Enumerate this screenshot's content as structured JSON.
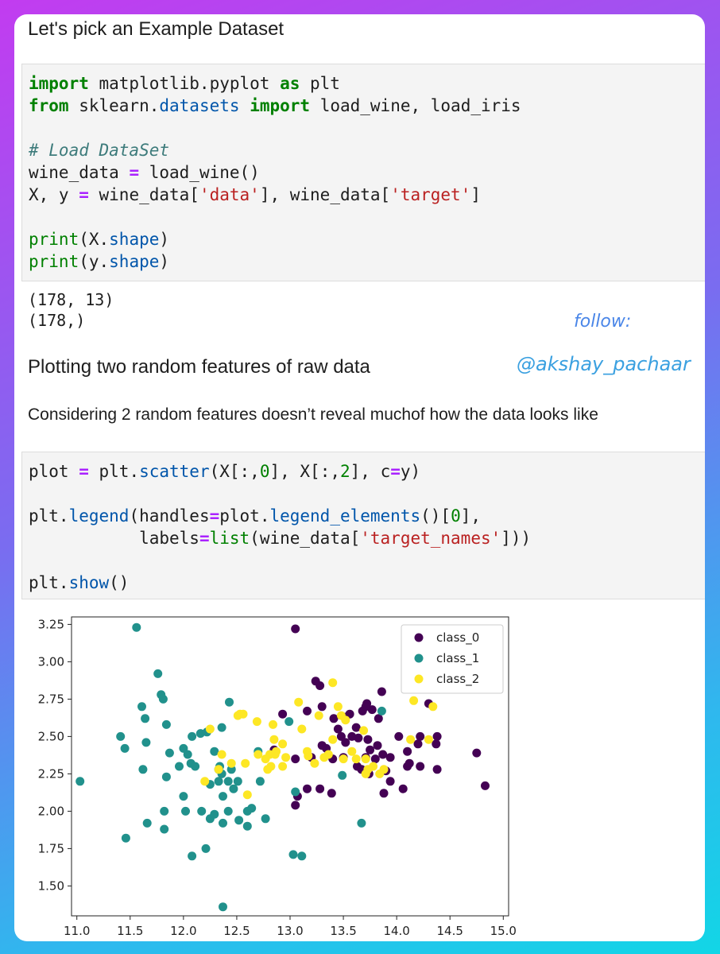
{
  "header": {
    "title": "Let's pick an Example Dataset"
  },
  "cell1": {
    "line1": {
      "kw_import": "import",
      "module": " matplotlib.pyplot ",
      "kw_as": "as",
      "rest": " plt"
    },
    "line2": {
      "kw_from": "from",
      "pre": " sklearn.",
      "module": "datasets",
      "space": " ",
      "kw_import": "import",
      "rest": " load_wine, load_iris"
    },
    "comment": "# Load DataSet",
    "line4": {
      "lhs": "wine_data ",
      "eq": "=",
      "rhs": " load_wine()"
    },
    "line5": {
      "lhs": "X, y ",
      "eq": "=",
      "pre": " wine_data[",
      "str1": "'data'",
      "mid": "], wine_data[",
      "str2": "'target'",
      "post": "]"
    },
    "line6": {
      "fn": "print",
      "pre": "(X.",
      "attr": "shape",
      "post": ")"
    },
    "line7": {
      "fn": "print",
      "pre": "(y.",
      "attr": "shape",
      "post": ")"
    }
  },
  "output1": {
    "line1": "(178, 13)",
    "line2": "(178,)"
  },
  "watermark": {
    "follow": "follow:",
    "handle": "@akshay_pachaar"
  },
  "section2": {
    "title": "Plotting two random features of raw data",
    "description": "Considering 2 random features doesn’t reveal muchof how the data looks like"
  },
  "cell2": {
    "line1": {
      "lhs": "plot ",
      "eq": "=",
      "pre": " plt.",
      "attr": "scatter",
      "a": "(X[:,",
      "n1": "0",
      "b": "], X[:,",
      "n2": "2",
      "c": "], c",
      "eq2": "=",
      "d": "y)"
    },
    "line2": {
      "pre": "plt.",
      "attr": "legend",
      "a": "(handles",
      "eq": "=",
      "b": "plot.",
      "attr2": "legend_elements",
      "c": "()[",
      "n": "0",
      "d": "],"
    },
    "line3": {
      "indent": "           labels",
      "eq": "=",
      "fn": "list",
      "a": "(wine_data[",
      "str": "'target_names'",
      "b": "]))"
    },
    "line4": {
      "pre": "plt.",
      "attr": "show",
      "post": "()"
    }
  },
  "chart_data": {
    "type": "scatter",
    "xlim": [
      10.95,
      15.05
    ],
    "ylim": [
      1.3,
      3.3
    ],
    "xticks": [
      11.0,
      11.5,
      12.0,
      12.5,
      13.0,
      13.5,
      14.0,
      14.5,
      15.0
    ],
    "xtick_labels": [
      "11.0",
      "11.5",
      "12.0",
      "12.5",
      "13.0",
      "13.5",
      "14.0",
      "14.5",
      "15.0"
    ],
    "yticks": [
      1.5,
      1.75,
      2.0,
      2.25,
      2.5,
      2.75,
      3.0,
      3.25
    ],
    "ytick_labels": [
      "1.50",
      "1.75",
      "2.00",
      "2.25",
      "2.50",
      "2.75",
      "3.00",
      "3.25"
    ],
    "legend_position": "top-right",
    "grid": false,
    "series": [
      {
        "name": "class_0",
        "color": "#440154",
        "points": [
          [
            13.05,
            3.22
          ],
          [
            14.83,
            2.17
          ],
          [
            14.75,
            2.39
          ],
          [
            14.38,
            2.5
          ],
          [
            14.38,
            2.28
          ],
          [
            14.37,
            2.45
          ],
          [
            14.3,
            2.72
          ],
          [
            14.22,
            2.5
          ],
          [
            14.22,
            2.3
          ],
          [
            14.2,
            2.45
          ],
          [
            14.1,
            2.4
          ],
          [
            14.1,
            2.3
          ],
          [
            14.06,
            2.15
          ],
          [
            14.02,
            2.5
          ],
          [
            13.94,
            2.36
          ],
          [
            13.87,
            2.38
          ],
          [
            13.86,
            2.8
          ],
          [
            13.88,
            2.12
          ],
          [
            13.9,
            2.27
          ],
          [
            13.83,
            2.62
          ],
          [
            13.82,
            2.44
          ],
          [
            13.77,
            2.68
          ],
          [
            13.75,
            2.41
          ],
          [
            13.73,
            2.48
          ],
          [
            13.74,
            2.25
          ],
          [
            13.72,
            2.72
          ],
          [
            13.71,
            2.36
          ],
          [
            13.68,
            2.67
          ],
          [
            13.64,
            2.49
          ],
          [
            13.63,
            2.3
          ],
          [
            13.58,
            2.5
          ],
          [
            13.56,
            2.65
          ],
          [
            13.52,
            2.46
          ],
          [
            13.5,
            2.36
          ],
          [
            13.48,
            2.5
          ],
          [
            13.41,
            2.62
          ],
          [
            13.4,
            2.35
          ],
          [
            13.39,
            2.12
          ],
          [
            13.34,
            2.42
          ],
          [
            13.3,
            2.7
          ],
          [
            13.28,
            2.84
          ],
          [
            13.24,
            2.87
          ],
          [
            13.2,
            2.36
          ],
          [
            13.16,
            2.67
          ],
          [
            13.16,
            2.15
          ],
          [
            13.07,
            2.1
          ],
          [
            13.05,
            2.04
          ],
          [
            13.05,
            2.35
          ],
          [
            13.28,
            2.15
          ],
          [
            13.3,
            2.44
          ],
          [
            14.12,
            2.32
          ],
          [
            13.94,
            2.2
          ],
          [
            13.8,
            2.35
          ],
          [
            13.67,
            2.28
          ],
          [
            13.51,
            2.63
          ],
          [
            13.45,
            2.55
          ],
          [
            12.93,
            2.65
          ],
          [
            12.85,
            2.41
          ],
          [
            13.62,
            2.56
          ],
          [
            13.71,
            2.7
          ]
        ]
      },
      {
        "name": "class_1",
        "color": "#21918c",
        "points": [
          [
            11.56,
            3.23
          ],
          [
            11.03,
            2.2
          ],
          [
            11.41,
            2.5
          ],
          [
            11.45,
            2.42
          ],
          [
            11.46,
            1.82
          ],
          [
            11.61,
            2.7
          ],
          [
            11.62,
            2.28
          ],
          [
            11.64,
            2.62
          ],
          [
            11.65,
            2.46
          ],
          [
            11.66,
            1.92
          ],
          [
            11.76,
            2.92
          ],
          [
            11.79,
            2.78
          ],
          [
            11.81,
            2.75
          ],
          [
            11.82,
            2.0
          ],
          [
            11.82,
            1.88
          ],
          [
            11.84,
            2.58
          ],
          [
            11.84,
            2.23
          ],
          [
            11.87,
            2.39
          ],
          [
            11.96,
            2.3
          ],
          [
            12.0,
            2.42
          ],
          [
            12.02,
            2.0
          ],
          [
            12.04,
            2.38
          ],
          [
            12.07,
            2.32
          ],
          [
            12.08,
            2.5
          ],
          [
            12.08,
            1.7
          ],
          [
            12.11,
            2.3
          ],
          [
            12.16,
            2.52
          ],
          [
            12.17,
            2.0
          ],
          [
            12.21,
            1.75
          ],
          [
            12.22,
            2.53
          ],
          [
            12.25,
            2.18
          ],
          [
            12.25,
            1.95
          ],
          [
            12.29,
            2.4
          ],
          [
            12.29,
            1.98
          ],
          [
            12.33,
            2.28
          ],
          [
            12.34,
            2.3
          ],
          [
            12.36,
            2.56
          ],
          [
            12.36,
            2.25
          ],
          [
            12.37,
            1.92
          ],
          [
            12.37,
            2.1
          ],
          [
            12.37,
            1.36
          ],
          [
            12.42,
            2.0
          ],
          [
            12.42,
            2.2
          ],
          [
            12.43,
            2.73
          ],
          [
            12.45,
            2.28
          ],
          [
            12.47,
            2.15
          ],
          [
            12.51,
            2.2
          ],
          [
            12.52,
            1.94
          ],
          [
            12.6,
            2.0
          ],
          [
            12.6,
            1.9
          ],
          [
            12.64,
            2.02
          ],
          [
            12.72,
            2.2
          ],
          [
            12.77,
            1.95
          ],
          [
            12.99,
            2.6
          ],
          [
            13.03,
            1.71
          ],
          [
            13.05,
            2.13
          ],
          [
            13.11,
            1.7
          ],
          [
            13.86,
            2.67
          ],
          [
            13.67,
            1.92
          ],
          [
            13.49,
            2.24
          ],
          [
            12.7,
            2.4
          ],
          [
            12.33,
            2.2
          ],
          [
            12.0,
            2.1
          ]
        ]
      },
      {
        "name": "class_2",
        "color": "#fde725",
        "points": [
          [
            13.4,
            2.86
          ],
          [
            14.34,
            2.7
          ],
          [
            14.3,
            2.48
          ],
          [
            14.16,
            2.74
          ],
          [
            13.88,
            2.28
          ],
          [
            13.78,
            2.3
          ],
          [
            13.73,
            2.28
          ],
          [
            13.71,
            2.25
          ],
          [
            13.69,
            2.54
          ],
          [
            13.62,
            2.35
          ],
          [
            13.58,
            2.4
          ],
          [
            13.52,
            2.61
          ],
          [
            13.5,
            2.35
          ],
          [
            13.48,
            2.64
          ],
          [
            13.45,
            2.7
          ],
          [
            13.4,
            2.48
          ],
          [
            13.36,
            2.38
          ],
          [
            13.32,
            2.36
          ],
          [
            13.27,
            2.64
          ],
          [
            13.23,
            2.32
          ],
          [
            13.17,
            2.37
          ],
          [
            13.16,
            2.4
          ],
          [
            13.11,
            2.55
          ],
          [
            13.08,
            2.73
          ],
          [
            12.96,
            2.36
          ],
          [
            12.93,
            2.45
          ],
          [
            12.87,
            2.4
          ],
          [
            12.86,
            2.38
          ],
          [
            12.85,
            2.48
          ],
          [
            12.84,
            2.58
          ],
          [
            12.82,
            2.3
          ],
          [
            12.81,
            2.38
          ],
          [
            12.79,
            2.28
          ],
          [
            12.77,
            2.35
          ],
          [
            12.7,
            2.38
          ],
          [
            12.69,
            2.6
          ],
          [
            12.6,
            2.11
          ],
          [
            12.58,
            2.32
          ],
          [
            12.56,
            2.65
          ],
          [
            12.53,
            2.65
          ],
          [
            12.51,
            2.64
          ],
          [
            12.45,
            2.32
          ],
          [
            12.36,
            2.38
          ],
          [
            12.33,
            2.28
          ],
          [
            12.2,
            2.2
          ],
          [
            12.25,
            2.55
          ],
          [
            12.93,
            2.3
          ],
          [
            13.71,
            2.35
          ],
          [
            13.84,
            2.25
          ],
          [
            14.13,
            2.48
          ]
        ]
      }
    ]
  }
}
